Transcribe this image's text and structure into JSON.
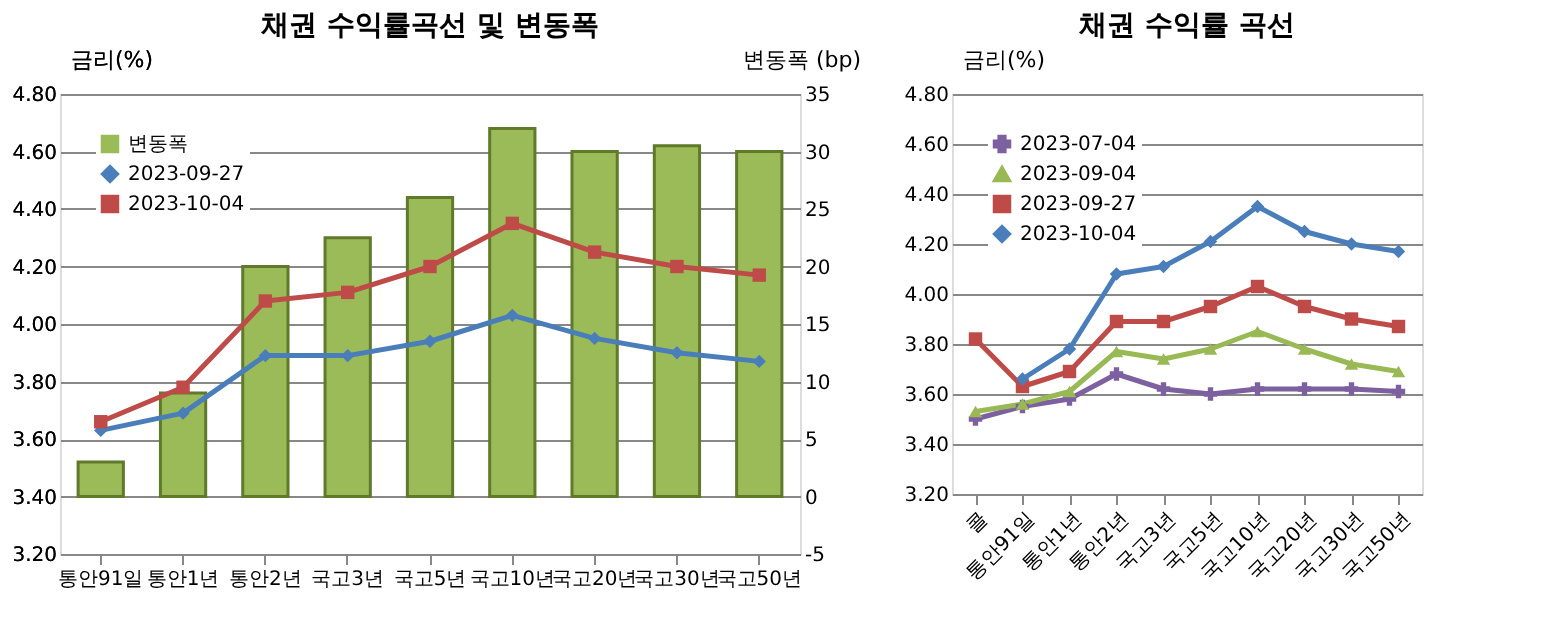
{
  "chart_data": [
    {
      "type": "line",
      "title": "채권 수익률곡선 및 변동폭",
      "ylabel": "금리(%)",
      "y2label": "변동폭 (bp)",
      "categories": [
        "통안91일",
        "통안1년",
        "통안2년",
        "국고3년",
        "국고5년",
        "국고10년",
        "국고20년",
        "국고30년",
        "국고50년"
      ],
      "series": [
        {
          "name": "변동폭",
          "type": "bar",
          "axis": "y2",
          "color": "#9bbb59",
          "values": [
            3,
            9,
            20,
            22.5,
            26,
            32,
            30,
            30.5,
            30
          ]
        },
        {
          "name": "2023-09-27",
          "color": "#4a7ebb",
          "marker": "diamond",
          "values": [
            3.63,
            3.69,
            3.89,
            3.89,
            3.94,
            4.03,
            3.95,
            3.9,
            3.87
          ]
        },
        {
          "name": "2023-10-04",
          "color": "#be4b48",
          "marker": "square",
          "values": [
            3.66,
            3.78,
            4.08,
            4.11,
            4.2,
            4.35,
            4.25,
            4.2,
            4.17
          ]
        }
      ],
      "ylim": [
        3.2,
        4.8
      ],
      "yticks": [
        {
          "value": 3.2,
          "label": "3.20"
        },
        {
          "value": 3.4,
          "label": "3.40"
        },
        {
          "value": 3.6,
          "label": "3.60"
        },
        {
          "value": 3.8,
          "label": "3.80"
        },
        {
          "value": 4.0,
          "label": "4.00"
        },
        {
          "value": 4.2,
          "label": "4.20"
        },
        {
          "value": 4.4,
          "label": "4.40"
        },
        {
          "value": 4.6,
          "label": "4.60"
        },
        {
          "value": 4.8,
          "label": "4.80"
        }
      ],
      "y2lim": [
        -5,
        35
      ],
      "y2ticks": [
        -5,
        0,
        5,
        10,
        15,
        20,
        25,
        30,
        35
      ],
      "grid": "y",
      "legend": "top left"
    },
    {
      "type": "line",
      "title": "채권 수익률 곡선",
      "ylabel": "금리(%)",
      "categories": [
        "콜",
        "통안91일",
        "통안1년",
        "통안2년",
        "국고3년",
        "국고5년",
        "국고10년",
        "국고20년",
        "국고30년",
        "국고50년"
      ],
      "series": [
        {
          "name": "2023-07-04",
          "color": "#7d60a0",
          "marker": "cross",
          "values": [
            3.5,
            3.55,
            3.58,
            3.68,
            3.62,
            3.6,
            3.62,
            3.62,
            3.62,
            3.61
          ]
        },
        {
          "name": "2023-09-04",
          "color": "#98b954",
          "marker": "triangle",
          "values": [
            3.53,
            3.56,
            3.61,
            3.77,
            3.74,
            3.78,
            3.85,
            3.78,
            3.72,
            3.69
          ]
        },
        {
          "name": "2023-09-27",
          "color": "#be4b48",
          "marker": "square",
          "values": [
            3.82,
            3.63,
            3.69,
            3.89,
            3.89,
            3.95,
            4.03,
            3.95,
            3.9,
            3.87
          ]
        },
        {
          "name": "2023-10-04",
          "color": "#4a7ebb",
          "marker": "diamond",
          "values": [
            null,
            3.66,
            3.78,
            4.08,
            4.11,
            4.21,
            4.35,
            4.25,
            4.2,
            4.17
          ]
        }
      ],
      "ylim": [
        3.2,
        4.8
      ],
      "yticks": [
        {
          "value": 3.2,
          "label": "3.20"
        },
        {
          "value": 3.4,
          "label": "3.40"
        },
        {
          "value": 3.6,
          "label": "3.60"
        },
        {
          "value": 3.8,
          "label": "3.80"
        },
        {
          "value": 4.0,
          "label": "4.00"
        },
        {
          "value": 4.2,
          "label": "4.20"
        },
        {
          "value": 4.4,
          "label": "4.40"
        },
        {
          "value": 4.6,
          "label": "4.60"
        },
        {
          "value": 4.8,
          "label": "4.80"
        }
      ],
      "grid": "y",
      "legend": "top left"
    }
  ]
}
